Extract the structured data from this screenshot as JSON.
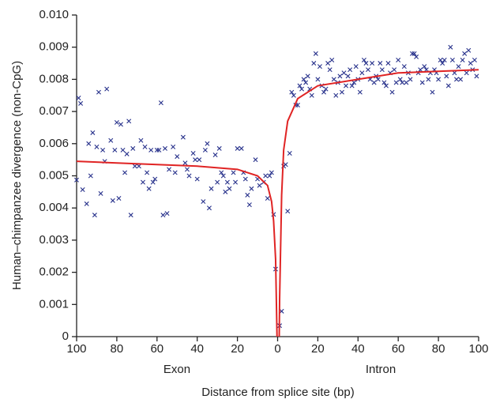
{
  "chart_data": {
    "type": "scatter",
    "y_label": "Human–chimpanzee divergence (non-CpG)",
    "x_label": "Distance from splice site (bp)",
    "annotations": [
      "Exon",
      "Intron"
    ],
    "xlim": [
      -100,
      100
    ],
    "ylim": [
      0,
      0.01
    ],
    "xticks": [
      {
        "value": -100,
        "label": "100"
      },
      {
        "value": -80,
        "label": "80"
      },
      {
        "value": -60,
        "label": "60"
      },
      {
        "value": -40,
        "label": "40"
      },
      {
        "value": -20,
        "label": "20"
      },
      0,
      20,
      40,
      60,
      80,
      100
    ],
    "yticks": [
      0,
      0.001,
      0.002,
      0.003,
      0.004,
      0.005,
      0.006,
      0.007,
      0.008,
      0.009,
      {
        "value": 0.01,
        "label": "0.010"
      }
    ],
    "grid": false,
    "series": [
      {
        "type": "scatter",
        "color": "#27318b",
        "x": [
          -100,
          -99,
          -98,
          -97,
          -95,
          -94,
          -93,
          -92,
          -91,
          -90,
          -89,
          -88,
          -87,
          -86,
          -85,
          -83,
          -82,
          -81,
          -80,
          -79,
          -78,
          -77,
          -76,
          -75,
          -74,
          -73,
          -72,
          -71,
          -69,
          -68,
          -67,
          -66,
          -65,
          -64,
          -63,
          -62,
          -61,
          -60,
          -59,
          -58,
          -57,
          -56,
          -55,
          -54,
          -52,
          -51,
          -50,
          -47,
          -46,
          -45,
          -44,
          -42,
          -41,
          -40,
          -39,
          -37,
          -36,
          -35,
          -34,
          -33,
          -31,
          -30,
          -29,
          -28,
          -27,
          -26,
          -25,
          -24,
          -22,
          -21,
          -20,
          -18,
          -17,
          -16,
          -15,
          -14,
          -13,
          -11,
          -10,
          -9,
          -7,
          -6,
          -5,
          -4,
          -3,
          -2,
          -1,
          1,
          2,
          3,
          4,
          5,
          6,
          7,
          8,
          9,
          10,
          11,
          12,
          13,
          14,
          15,
          16,
          17,
          18,
          19,
          20,
          21,
          22,
          23,
          24,
          25,
          26,
          27,
          28,
          29,
          30,
          31,
          32,
          33,
          34,
          35,
          36,
          37,
          38,
          39,
          40,
          41,
          42,
          43,
          44,
          45,
          46,
          47,
          48,
          49,
          50,
          51,
          52,
          53,
          54,
          55,
          56,
          57,
          58,
          59,
          60,
          61,
          62,
          63,
          64,
          65,
          66,
          67,
          68,
          69,
          70,
          71,
          72,
          73,
          74,
          75,
          76,
          77,
          78,
          79,
          80,
          81,
          82,
          83,
          84,
          85,
          86,
          87,
          88,
          89,
          90,
          91,
          92,
          93,
          94,
          95,
          96,
          97,
          98,
          99
        ],
        "values": [
          0.00487,
          0.00742,
          0.00725,
          0.00457,
          0.00413,
          0.006,
          0.005,
          0.00634,
          0.00378,
          0.0059,
          0.0076,
          0.00445,
          0.0058,
          0.00545,
          0.0077,
          0.0061,
          0.00423,
          0.0058,
          0.00666,
          0.0043,
          0.0066,
          0.0058,
          0.0051,
          0.00568,
          0.0067,
          0.00378,
          0.00585,
          0.0053,
          0.0053,
          0.0061,
          0.0048,
          0.0059,
          0.0051,
          0.0046,
          0.0058,
          0.0048,
          0.0049,
          0.0058,
          0.0058,
          0.00727,
          0.00378,
          0.00585,
          0.00383,
          0.0052,
          0.0059,
          0.0051,
          0.0056,
          0.0062,
          0.0054,
          0.0052,
          0.005,
          0.0057,
          0.0055,
          0.0049,
          0.0055,
          0.0042,
          0.0058,
          0.006,
          0.004,
          0.0046,
          0.00565,
          0.0048,
          0.00585,
          0.0051,
          0.005,
          0.0045,
          0.0048,
          0.0046,
          0.0051,
          0.0048,
          0.00585,
          0.00585,
          0.0051,
          0.0049,
          0.0044,
          0.0041,
          0.0046,
          0.0055,
          0.0049,
          0.0047,
          0.0048,
          0.005,
          0.0043,
          0.005,
          0.0051,
          0.0038,
          0.0021,
          0.00034,
          0.00079,
          0.0053,
          0.00535,
          0.0039,
          0.0057,
          0.0076,
          0.0075,
          0.0072,
          0.0072,
          0.0078,
          0.0077,
          0.008,
          0.0079,
          0.0081,
          0.0077,
          0.0075,
          0.0085,
          0.0088,
          0.008,
          0.0084,
          0.0078,
          0.0076,
          0.0077,
          0.0085,
          0.0083,
          0.0086,
          0.008,
          0.0075,
          0.0079,
          0.0081,
          0.0076,
          0.0082,
          0.0078,
          0.0081,
          0.0083,
          0.0078,
          0.0079,
          0.0084,
          0.008,
          0.0076,
          0.0082,
          0.0086,
          0.0085,
          0.0083,
          0.008,
          0.0085,
          0.0079,
          0.0081,
          0.008,
          0.0085,
          0.0083,
          0.0079,
          0.0078,
          0.0085,
          0.0082,
          0.0076,
          0.0083,
          0.0079,
          0.0086,
          0.008,
          0.0079,
          0.0084,
          0.0079,
          0.0082,
          0.008,
          0.0088,
          0.0088,
          0.0087,
          0.0082,
          0.0083,
          0.0079,
          0.0084,
          0.0083,
          0.008,
          0.0082,
          0.0076,
          0.0083,
          0.0082,
          0.008,
          0.0086,
          0.0085,
          0.0086,
          0.0081,
          0.0078,
          0.009,
          0.0086,
          0.0082,
          0.008,
          0.0084,
          0.008,
          0.0086,
          0.0088,
          0.0082,
          0.0089,
          0.0085,
          0.0083,
          0.0086,
          0.0081
        ]
      },
      {
        "type": "line",
        "color": "#e02424",
        "x": [
          -100,
          -80,
          -60,
          -40,
          -20,
          -10,
          -5,
          -3,
          -2,
          -1,
          -0.3
        ],
        "values": [
          0.00545,
          0.0054,
          0.00535,
          0.0053,
          0.0052,
          0.005,
          0.0047,
          0.0042,
          0.0036,
          0.0024,
          0
        ]
      },
      {
        "type": "line",
        "color": "#e02424",
        "x": [
          0.8,
          1,
          2,
          3,
          5,
          10,
          20,
          40,
          60,
          80,
          100
        ],
        "values": [
          0,
          0.0012,
          0.0044,
          0.0058,
          0.0067,
          0.0074,
          0.0078,
          0.008,
          0.0082,
          0.00825,
          0.0083
        ]
      }
    ]
  }
}
